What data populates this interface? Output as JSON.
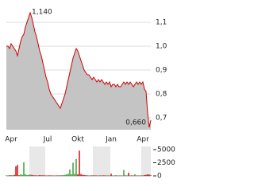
{
  "chart_data": [
    {
      "type": "area",
      "color": "#cc0000",
      "fill": "#c4c4c4",
      "categories": [
        null,
        null,
        null,
        "Apr",
        null,
        null,
        null,
        null,
        null,
        null,
        null,
        null,
        null,
        null,
        null,
        null,
        null,
        null,
        null,
        null,
        null,
        null,
        null,
        null,
        null,
        null,
        "Jul",
        null,
        null,
        null,
        null,
        null,
        null,
        null,
        null,
        null,
        null,
        null,
        null,
        null,
        null,
        null,
        null,
        null,
        null,
        "Okt",
        null,
        null,
        null,
        null,
        null,
        null,
        null,
        null,
        null,
        null,
        null,
        null,
        null,
        null,
        null,
        null,
        null,
        null,
        null,
        null,
        "Jan",
        null,
        null,
        null,
        null,
        null,
        null,
        null,
        null,
        null,
        null,
        null,
        null,
        null,
        null,
        null,
        null,
        null,
        null,
        null,
        "Apr",
        null,
        null,
        null,
        null,
        null
      ],
      "values": [
        1.0,
        1.0,
        0.99,
        1.01,
        1.0,
        0.99,
        0.98,
        0.96,
        0.99,
        1.02,
        1.04,
        1.05,
        1.08,
        1.1,
        1.12,
        1.14,
        1.12,
        1.09,
        1.06,
        1.04,
        1.01,
        0.98,
        0.96,
        0.93,
        0.9,
        0.87,
        0.85,
        0.82,
        0.8,
        0.79,
        0.78,
        0.77,
        0.76,
        0.75,
        0.74,
        0.76,
        0.78,
        0.8,
        0.83,
        0.86,
        0.89,
        0.92,
        0.95,
        0.97,
        0.99,
        0.98,
        0.96,
        0.94,
        0.92,
        0.9,
        0.89,
        0.88,
        0.88,
        0.87,
        0.86,
        0.87,
        0.86,
        0.85,
        0.86,
        0.85,
        0.86,
        0.85,
        0.84,
        0.85,
        0.84,
        0.85,
        0.83,
        0.84,
        0.84,
        0.83,
        0.84,
        0.83,
        0.83,
        0.84,
        0.85,
        0.84,
        0.85,
        0.84,
        0.85,
        0.84,
        0.83,
        0.84,
        0.85,
        0.84,
        0.85,
        0.84,
        0.85,
        0.82,
        0.81,
        0.72,
        0.66,
        0.69
      ],
      "ylim": [
        0.65,
        1.17
      ],
      "yticks": [
        {
          "value": 0.7,
          "label": "0,7"
        },
        {
          "value": 0.8,
          "label": "0,8"
        },
        {
          "value": 0.9,
          "label": "0,9"
        },
        {
          "value": 1.0,
          "label": "1,0"
        },
        {
          "value": 1.1,
          "label": "1,1"
        }
      ],
      "grid": true,
      "annotations": [
        {
          "value": 1.14,
          "label": "1,140"
        },
        {
          "value": 0.66,
          "label": "0,660"
        }
      ]
    },
    {
      "type": "bar",
      "up_color": "#2a9a2a",
      "down_color": "#cc0000",
      "values": [
        100,
        80,
        120,
        150,
        90,
        200,
        1800,
        2100,
        150,
        300,
        200,
        2600,
        300,
        150,
        200,
        250,
        180,
        120,
        100,
        90,
        80,
        150,
        100,
        120,
        90,
        80,
        70,
        100,
        90,
        80,
        60,
        70,
        90,
        80,
        100,
        120,
        150,
        200,
        300,
        400,
        1200,
        300,
        2500,
        400,
        3200,
        300,
        4800,
        350,
        200,
        150,
        120,
        100,
        90,
        80,
        100,
        120,
        90,
        80,
        70,
        90,
        80,
        100,
        90,
        80,
        70,
        60,
        400,
        80,
        90,
        100,
        80,
        70,
        90,
        80,
        1100,
        90,
        100,
        600,
        80,
        90,
        70,
        300,
        90,
        80,
        70,
        90,
        100,
        150,
        200,
        300,
        250,
        150
      ],
      "ylim": [
        0,
        5600
      ],
      "yticks": [
        0,
        2500,
        5000
      ]
    }
  ]
}
